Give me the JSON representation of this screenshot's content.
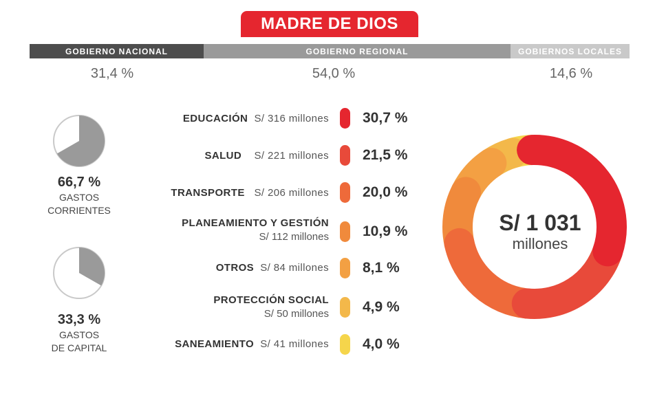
{
  "title": "MADRE DE DIOS",
  "gov_levels": [
    {
      "label": "GOBIERNO NACIONAL",
      "pct": "31,4 %"
    },
    {
      "label": "GOBIERNO REGIONAL",
      "pct": "54,0 %"
    },
    {
      "label": "GOBIERNOS LOCALES",
      "pct": "14,6 %"
    }
  ],
  "spending_type": [
    {
      "pct": "66,7 %",
      "label_line1": "GASTOS",
      "label_line2": "CORRIENTES",
      "fraction": 0.667
    },
    {
      "pct": "33,3 %",
      "label_line1": "GASTOS",
      "label_line2": "DE CAPITAL",
      "fraction": 0.333
    }
  ],
  "total": {
    "amount": "S/ 1 031",
    "unit": "millones"
  },
  "chart_data": {
    "type": "pie",
    "series": [
      {
        "values": [
          30.7,
          21.5,
          20.0,
          10.9,
          8.1,
          4.9,
          4.0
        ]
      }
    ],
    "categories": [
      "EDUCACIÓN",
      "SALUD",
      "TRANSPORTE",
      "PLANEAMIENTO Y GESTIÓN",
      "OTROS",
      "PROTECCIÓN SOCIAL",
      "SANEAMIENTO"
    ],
    "rows": [
      {
        "name": "EDUCACIÓN",
        "amount": "S/ 316 millones",
        "pct": "30,7 %",
        "color": "#e5262f"
      },
      {
        "name": "SALUD",
        "amount": "S/ 221 millones",
        "pct": "21,5 %",
        "color": "#e84a3a"
      },
      {
        "name": "TRANSPORTE",
        "amount": "S/ 206 millones",
        "pct": "20,0 %",
        "color": "#ee6a3a"
      },
      {
        "name": "PLANEAMIENTO Y GESTIÓN",
        "amount": "S/ 112 millones",
        "pct": "10,9 %",
        "color": "#f08a3c"
      },
      {
        "name": "OTROS",
        "amount": "S/ 84 millones",
        "pct": "8,1 %",
        "color": "#f3a043"
      },
      {
        "name": "PROTECCIÓN SOCIAL",
        "amount": "S/ 50 millones",
        "pct": "4,9 %",
        "color": "#f3b84a"
      },
      {
        "name": "SANEAMIENTO",
        "amount": "S/ 41 millones",
        "pct": "4,0 %",
        "color": "#f5d54b"
      }
    ]
  }
}
